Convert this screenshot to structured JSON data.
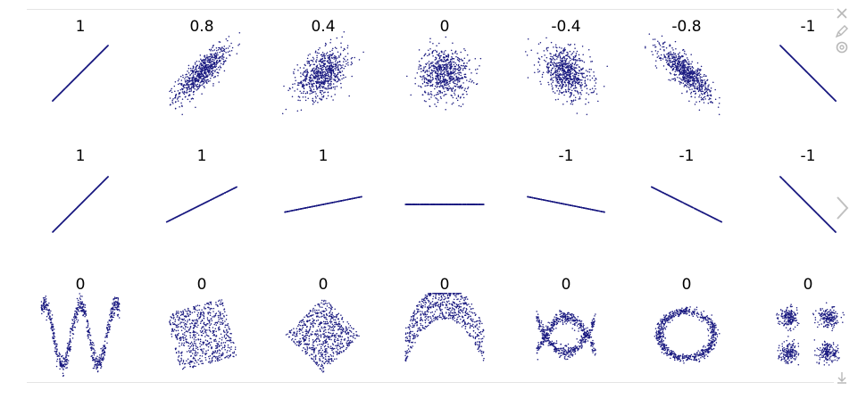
{
  "icons": {
    "toolbar": [
      "close-icon",
      "edit-icon",
      "settings-icon"
    ],
    "next": "chevron-right-icon",
    "download": "download-icon"
  },
  "colors": {
    "points": "#1a1a80",
    "labels": "#000000",
    "frame": "#e4e4e4",
    "icons": "#b8b8b8"
  },
  "chart_data": {
    "type": "scatter",
    "grid": false,
    "panels": [
      {
        "row": 1,
        "col": 1,
        "label": "1",
        "shape": "linear",
        "r": 1,
        "slope": 1
      },
      {
        "row": 1,
        "col": 2,
        "label": "0.8",
        "shape": "correlated",
        "r": 0.8
      },
      {
        "row": 1,
        "col": 3,
        "label": "0.4",
        "shape": "correlated",
        "r": 0.4
      },
      {
        "row": 1,
        "col": 4,
        "label": "0",
        "shape": "correlated",
        "r": 0
      },
      {
        "row": 1,
        "col": 5,
        "label": "-0.4",
        "shape": "correlated",
        "r": -0.4
      },
      {
        "row": 1,
        "col": 6,
        "label": "-0.8",
        "shape": "correlated",
        "r": -0.8
      },
      {
        "row": 1,
        "col": 7,
        "label": "-1",
        "shape": "linear",
        "r": -1,
        "slope": -1
      },
      {
        "row": 2,
        "col": 1,
        "label": "1",
        "shape": "linear",
        "r": 1,
        "slope": 1
      },
      {
        "row": 2,
        "col": 2,
        "label": "1",
        "shape": "linear",
        "r": 1,
        "slope": 0.5
      },
      {
        "row": 2,
        "col": 3,
        "label": "1",
        "shape": "linear",
        "r": 1,
        "slope": 0.2
      },
      {
        "row": 2,
        "col": 4,
        "label": "",
        "shape": "linear",
        "r": null,
        "slope": 0
      },
      {
        "row": 2,
        "col": 5,
        "label": "-1",
        "shape": "linear",
        "r": -1,
        "slope": -0.2
      },
      {
        "row": 2,
        "col": 6,
        "label": "-1",
        "shape": "linear",
        "r": -1,
        "slope": -0.5
      },
      {
        "row": 2,
        "col": 7,
        "label": "-1",
        "shape": "linear",
        "r": -1,
        "slope": -1
      },
      {
        "row": 3,
        "col": 1,
        "label": "0",
        "shape": "wave",
        "r": 0
      },
      {
        "row": 3,
        "col": 2,
        "label": "0",
        "shape": "rotated-square",
        "r": 0,
        "angle_deg": 15
      },
      {
        "row": 3,
        "col": 3,
        "label": "0",
        "shape": "diamond",
        "r": 0
      },
      {
        "row": 3,
        "col": 4,
        "label": "0",
        "shape": "parabola",
        "r": 0
      },
      {
        "row": 3,
        "col": 5,
        "label": "0",
        "shape": "cross",
        "r": 0
      },
      {
        "row": 3,
        "col": 6,
        "label": "0",
        "shape": "ring",
        "r": 0
      },
      {
        "row": 3,
        "col": 7,
        "label": "0",
        "shape": "four-clusters",
        "r": 0
      }
    ]
  }
}
